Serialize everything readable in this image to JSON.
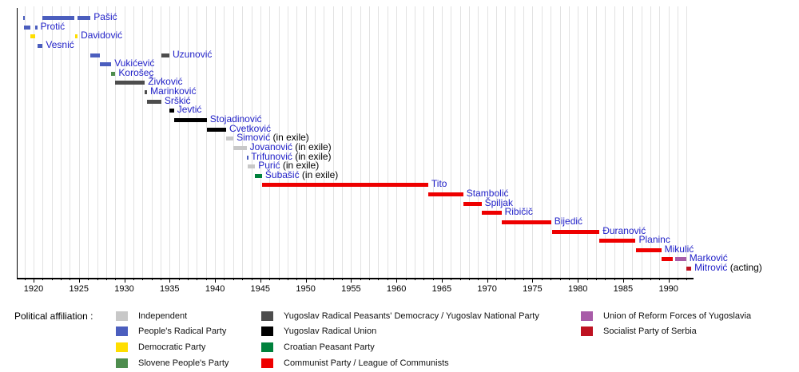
{
  "chart_data": {
    "type": "timeline",
    "title": "",
    "subject": "Prime Ministers of Yugoslavia by term and political affiliation",
    "x_axis": {
      "min": 1918.1,
      "max": 1992.8,
      "labeled_ticks": [
        1920,
        1925,
        1930,
        1935,
        1940,
        1945,
        1950,
        1955,
        1960,
        1965,
        1970,
        1975,
        1980,
        1985,
        1990
      ],
      "minor_tick_every_years": 1,
      "grid": "on"
    },
    "parties": {
      "independent": {
        "label": "Independent",
        "color": "#C8C8C8"
      },
      "peoples_radical": {
        "label": "People's Radical Party",
        "color": "#4B5EBE"
      },
      "democratic": {
        "label": "Democratic Party",
        "color": "#FFDE00"
      },
      "slovene_peoples": {
        "label": "Slovene People's Party",
        "color": "#4E8D4E"
      },
      "ynp": {
        "label": "Yugoslav Radical Peasants' Democracy / Yugoslav National Party",
        "color": "#4D4D4D"
      },
      "jrz": {
        "label": "Yugoslav Radical Union",
        "color": "#000000"
      },
      "croatian_peasant": {
        "label": "Croatian Peasant Party",
        "color": "#00813C"
      },
      "communist": {
        "label": "Communist Party / League of Communists",
        "color": "#EE0000"
      },
      "reform": {
        "label": "Union of Reform Forces of Yugoslavia",
        "color": "#A85CA8"
      },
      "sps": {
        "label": "Socialist Party of Serbia",
        "color": "#BE1221"
      }
    },
    "people": [
      {
        "name": "Pašić",
        "note": "",
        "segments": [
          [
            1918.85,
            1919.05,
            "peoples_radical"
          ],
          [
            1921.0,
            1924.5,
            "peoples_radical"
          ],
          [
            1924.8,
            1926.28,
            "peoples_radical"
          ]
        ]
      },
      {
        "name": "Protić",
        "note": "",
        "segments": [
          [
            1918.97,
            1919.62,
            "peoples_radical"
          ],
          [
            1920.14,
            1920.4,
            "peoples_radical"
          ]
        ]
      },
      {
        "name": "Davidović",
        "note": "",
        "segments": [
          [
            1919.62,
            1920.14,
            "democratic"
          ],
          [
            1924.56,
            1924.85,
            "democratic"
          ]
        ]
      },
      {
        "name": "Vesnić",
        "note": "",
        "segments": [
          [
            1920.4,
            1921.0,
            "peoples_radical"
          ]
        ]
      },
      {
        "name": "Uzunović",
        "note": "",
        "segments": [
          [
            1926.28,
            1927.3,
            "peoples_radical"
          ],
          [
            1934.08,
            1934.97,
            "ynp"
          ]
        ]
      },
      {
        "name": "Vukićević",
        "note": "",
        "segments": [
          [
            1927.3,
            1928.56,
            "peoples_radical"
          ]
        ]
      },
      {
        "name": "Korošec",
        "note": "",
        "segments": [
          [
            1928.56,
            1929.02,
            "slovene_peoples"
          ]
        ]
      },
      {
        "name": "Živković",
        "note": "",
        "segments": [
          [
            1929.02,
            1932.26,
            "ynp"
          ]
        ]
      },
      {
        "name": "Marinković",
        "note": "",
        "segments": [
          [
            1932.26,
            1932.52,
            "ynp"
          ]
        ]
      },
      {
        "name": "Srškić",
        "note": "",
        "segments": [
          [
            1932.52,
            1934.08,
            "ynp"
          ]
        ]
      },
      {
        "name": "Jevtić",
        "note": "",
        "segments": [
          [
            1934.97,
            1935.48,
            "jrz"
          ]
        ]
      },
      {
        "name": "Stojadinović",
        "note": "",
        "segments": [
          [
            1935.48,
            1939.1,
            "jrz"
          ]
        ]
      },
      {
        "name": "Cvetković",
        "note": "",
        "segments": [
          [
            1939.1,
            1941.23,
            "jrz"
          ]
        ]
      },
      {
        "name": "Simović",
        "note": "(in exile)",
        "segments": [
          [
            1941.23,
            1942.03,
            "independent"
          ]
        ]
      },
      {
        "name": "Jovanović",
        "note": "(in exile)",
        "segments": [
          [
            1942.03,
            1943.48,
            "independent"
          ]
        ]
      },
      {
        "name": "Trifunović",
        "note": "(in exile)",
        "segments": [
          [
            1943.48,
            1943.63,
            "peoples_radical"
          ]
        ]
      },
      {
        "name": "Purić",
        "note": "(in exile)",
        "segments": [
          [
            1943.63,
            1944.42,
            "independent"
          ]
        ]
      },
      {
        "name": "Šubašić",
        "note": "(in exile)",
        "segments": [
          [
            1944.42,
            1945.18,
            "croatian_peasant"
          ]
        ]
      },
      {
        "name": "Tito",
        "note": "",
        "segments": [
          [
            1945.18,
            1963.5,
            "communist"
          ]
        ]
      },
      {
        "name": "Stambolić",
        "note": "",
        "segments": [
          [
            1963.5,
            1967.37,
            "communist"
          ]
        ]
      },
      {
        "name": "Špiljak",
        "note": "",
        "segments": [
          [
            1967.37,
            1969.38,
            "communist"
          ]
        ]
      },
      {
        "name": "Ribičič",
        "note": "",
        "segments": [
          [
            1969.38,
            1971.58,
            "communist"
          ]
        ]
      },
      {
        "name": "Bijedić",
        "note": "",
        "segments": [
          [
            1971.58,
            1977.05,
            "communist"
          ]
        ]
      },
      {
        "name": "Đuranović",
        "note": "",
        "segments": [
          [
            1977.2,
            1982.38,
            "communist"
          ]
        ]
      },
      {
        "name": "Planinc",
        "note": "",
        "segments": [
          [
            1982.38,
            1986.37,
            "communist"
          ]
        ]
      },
      {
        "name": "Mikulić",
        "note": "",
        "segments": [
          [
            1986.37,
            1989.2,
            "communist"
          ]
        ]
      },
      {
        "name": "Marković",
        "note": "",
        "segments": [
          [
            1989.2,
            1990.5,
            "communist"
          ],
          [
            1990.7,
            1991.95,
            "reform"
          ]
        ]
      },
      {
        "name": "Mitrović",
        "note": "(acting)",
        "segments": [
          [
            1991.95,
            1992.5,
            "sps"
          ]
        ]
      }
    ]
  },
  "legend": {
    "title": "Political affiliation :",
    "columns": [
      [
        "independent",
        "peoples_radical",
        "democratic",
        "slovene_peoples"
      ],
      [
        "ynp",
        "jrz",
        "croatian_peasant",
        "communist"
      ],
      [
        "reform",
        "sps"
      ]
    ]
  }
}
